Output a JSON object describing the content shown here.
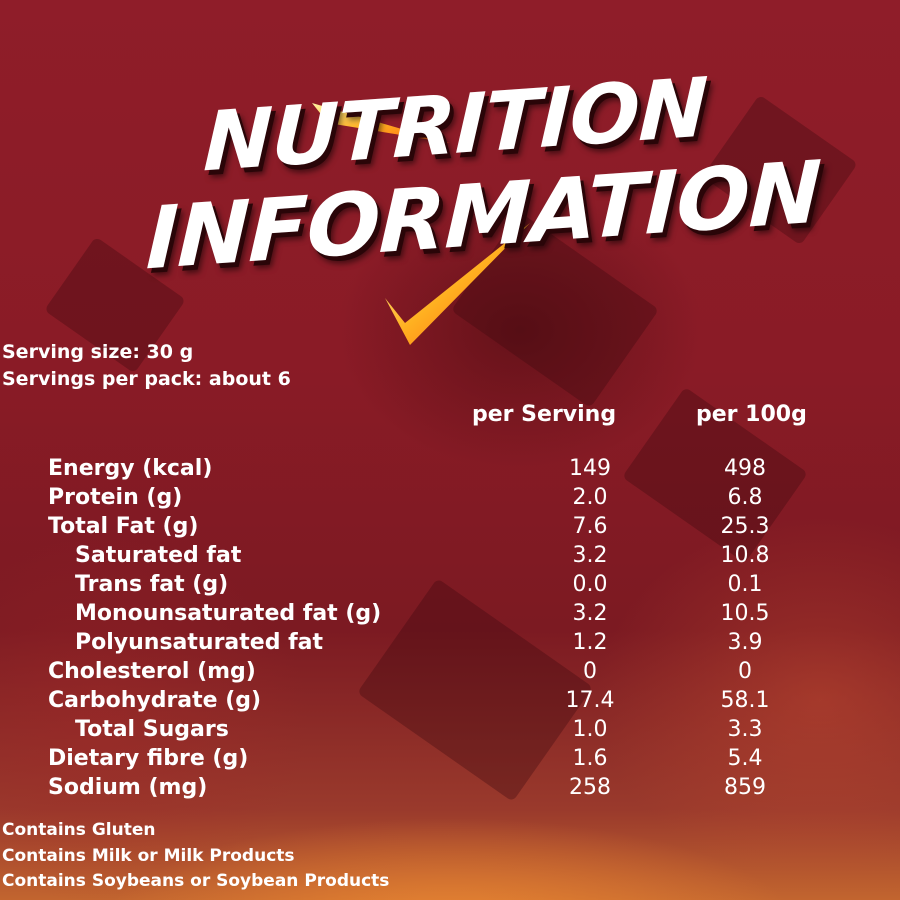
{
  "title": {
    "line1": "NUTRITION",
    "line2": "INFORMATION"
  },
  "serving_size": "Serving size: 30 g",
  "servings_per_pack": "Servings per pack: about 6",
  "columns": {
    "per_serving": "per Serving",
    "per_100g": "per 100g"
  },
  "rows": [
    {
      "label": "Energy (kcal)",
      "per_serving": "149",
      "per_100g": "498",
      "indent": false
    },
    {
      "label": "Protein (g)",
      "per_serving": "2.0",
      "per_100g": "6.8",
      "indent": false
    },
    {
      "label": "Total Fat (g)",
      "per_serving": "7.6",
      "per_100g": "25.3",
      "indent": false
    },
    {
      "label": "Saturated fat",
      "per_serving": "3.2",
      "per_100g": "10.8",
      "indent": true
    },
    {
      "label": "Trans fat (g)",
      "per_serving": "0.0",
      "per_100g": "0.1",
      "indent": true
    },
    {
      "label": "Monounsaturated fat (g)",
      "per_serving": "3.2",
      "per_100g": "10.5",
      "indent": true
    },
    {
      "label": "Polyunsaturated fat",
      "per_serving": "1.2",
      "per_100g": "3.9",
      "indent": true
    },
    {
      "label": "Cholesterol (mg)",
      "per_serving": "0",
      "per_100g": "0",
      "indent": false
    },
    {
      "label": "Carbohydrate (g)",
      "per_serving": "17.4",
      "per_100g": "58.1",
      "indent": false
    },
    {
      "label": "Total Sugars",
      "per_serving": "1.0",
      "per_100g": "3.3",
      "indent": true
    },
    {
      "label": "Dietary fibre (g)",
      "per_serving": "1.6",
      "per_100g": "5.4",
      "indent": false
    },
    {
      "label": "Sodium (mg)",
      "per_serving": "258",
      "per_100g": "859",
      "indent": false
    }
  ],
  "allergens": [
    "Contains Gluten",
    "Contains Milk or Milk Products",
    "Contains Soybeans or Soybean Products"
  ],
  "colors": {
    "background": "#8f1d29",
    "glow": "#f08c32",
    "text": "#ffffff"
  }
}
